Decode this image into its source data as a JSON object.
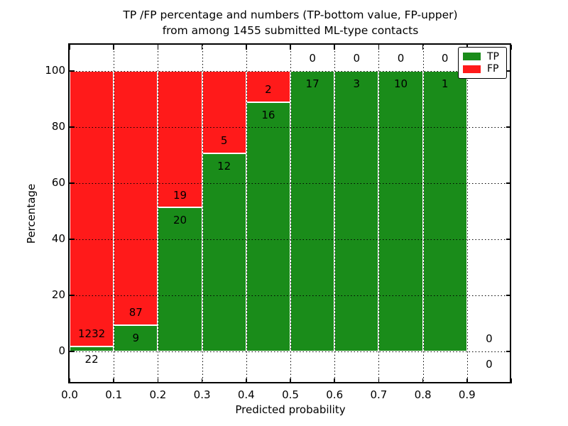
{
  "chart_data": {
    "type": "bar",
    "stacked": true,
    "title_lines": [
      "TP /FP percentage and numbers (TP-bottom value, FP-upper)",
      "from among 1455 submitted ML-type contacts"
    ],
    "xlabel": "Predicted probability",
    "ylabel": "Percentage",
    "total_submitted": 1455,
    "bin_width": 0.1,
    "categories": [
      "0.0",
      "0.1",
      "0.2",
      "0.3",
      "0.4",
      "0.5",
      "0.6",
      "0.7",
      "0.8",
      "0.9"
    ],
    "series": [
      {
        "name": "TP",
        "color": "#1a8c1a",
        "counts": [
          22,
          9,
          20,
          12,
          16,
          17,
          3,
          10,
          1,
          0
        ]
      },
      {
        "name": "FP",
        "color": "#ff1a1a",
        "counts": [
          1232,
          87,
          19,
          5,
          2,
          0,
          0,
          0,
          0,
          0
        ]
      }
    ],
    "yticks": [
      "0",
      "20",
      "40",
      "60",
      "80",
      "100"
    ],
    "ytick_values": [
      0,
      20,
      40,
      60,
      80,
      100
    ],
    "ylim": [
      -11.3,
      109.4
    ],
    "xlim": [
      0,
      1.0
    ],
    "grid": {
      "style": "dotted",
      "color": "#000000",
      "on_top": true
    },
    "legend": {
      "position": "upper right",
      "entries": [
        {
          "label": "TP",
          "color": "#1a8c1a"
        },
        {
          "label": "FP",
          "color": "#ff1a1a"
        }
      ]
    }
  }
}
